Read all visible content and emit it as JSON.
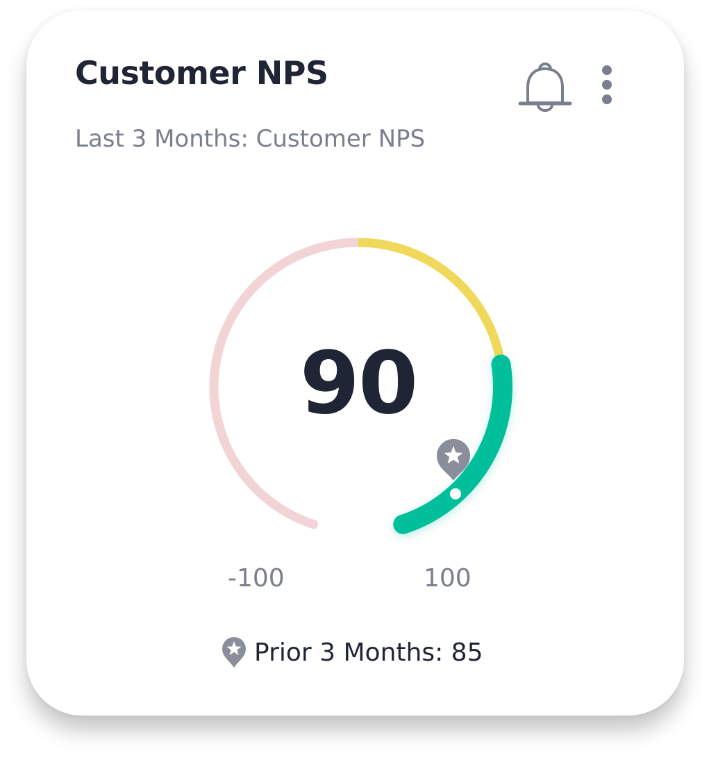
{
  "card": {
    "title": "Customer NPS",
    "subtitle": "Last 3 Months: Customer NPS",
    "icons": [
      "bell-icon",
      "more-vertical-icon"
    ]
  },
  "gauge": {
    "value": "90",
    "min_label": "-100",
    "max_label": "100",
    "min": -100,
    "max": 100,
    "prior_value": 85,
    "zones": [
      {
        "from": -100,
        "to": 0,
        "color": "#f2d4d6"
      },
      {
        "from": 0,
        "to": 50,
        "color": "#f0d95a"
      },
      {
        "from": 50,
        "to": 100,
        "color": "#00bf9a"
      }
    ],
    "marker_color": "#8a8e9b"
  },
  "footer": {
    "prior_label": "Prior 3 Months: 85",
    "icon": "star-pin-icon"
  }
}
